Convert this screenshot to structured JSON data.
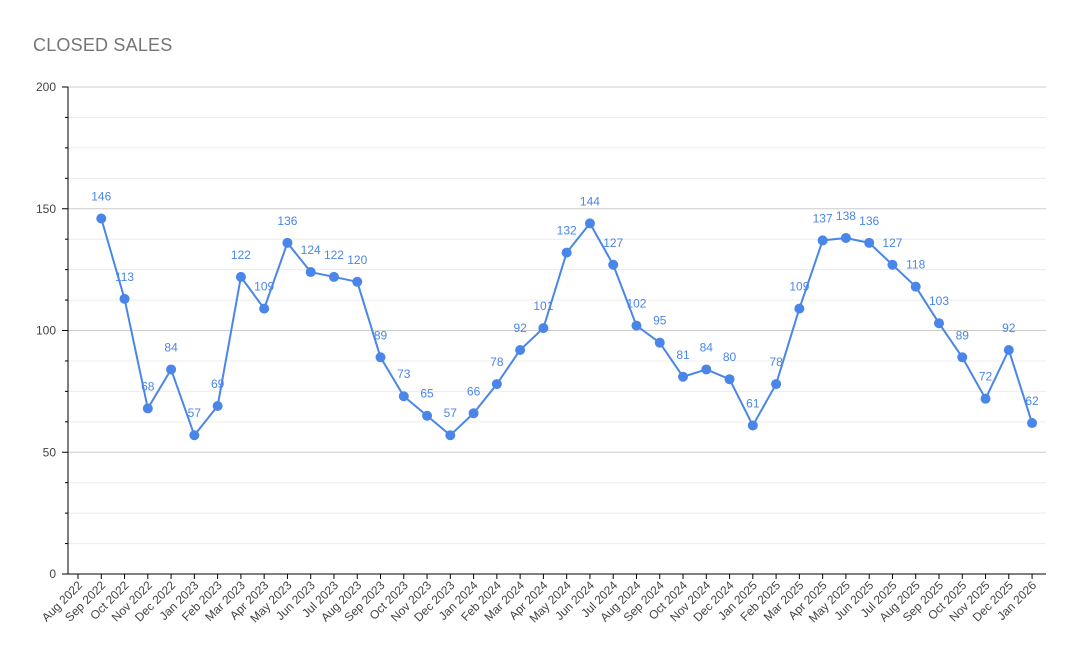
{
  "chart_data": {
    "type": "line",
    "title": "CLOSED SALES",
    "xlabel": "",
    "ylabel": "",
    "ylim": [
      0,
      200
    ],
    "yticks": [
      0,
      50,
      100,
      150,
      200
    ],
    "grid": true,
    "legend": "none",
    "colors": {
      "series": "#4a86e8",
      "grid": "#dddddd",
      "axis": "#000000",
      "title": "#757575",
      "tick_text": "#444444"
    },
    "categories": [
      "Aug 2022",
      "Sep 2022",
      "Oct 2022",
      "Nov 2022",
      "Dec 2022",
      "Jan 2023",
      "Feb 2023",
      "Mar 2023",
      "Apr 2023",
      "May 2023",
      "Jun 2023",
      "Jul 2023",
      "Aug 2023",
      "Sep 2023",
      "Oct 2023",
      "Nov 2023",
      "Dec 2023",
      "Jan 2024",
      "Feb 2024",
      "Mar 2024",
      "Apr 2024",
      "May 2024",
      "Jun 2024",
      "Jul 2024",
      "Aug 2024",
      "Sep 2024",
      "Oct 2024",
      "Nov 2024",
      "Dec 2024",
      "Jan 2025",
      "Feb 2025",
      "Mar 2025",
      "Apr 2025",
      "May 2025",
      "Jun 2025",
      "Jul 2025",
      "Aug 2025",
      "Sep 2025",
      "Oct 2025",
      "Nov 2025",
      "Dec 2025",
      "Jan 2026"
    ],
    "series": [
      {
        "values": [
          null,
          146,
          113,
          68,
          84,
          57,
          69,
          122,
          109,
          136,
          124,
          122,
          120,
          89,
          73,
          65,
          57,
          66,
          78,
          92,
          101,
          132,
          144,
          127,
          102,
          95,
          81,
          84,
          80,
          61,
          78,
          109,
          137,
          138,
          136,
          127,
          118,
          103,
          89,
          72,
          92,
          62
        ]
      }
    ]
  }
}
